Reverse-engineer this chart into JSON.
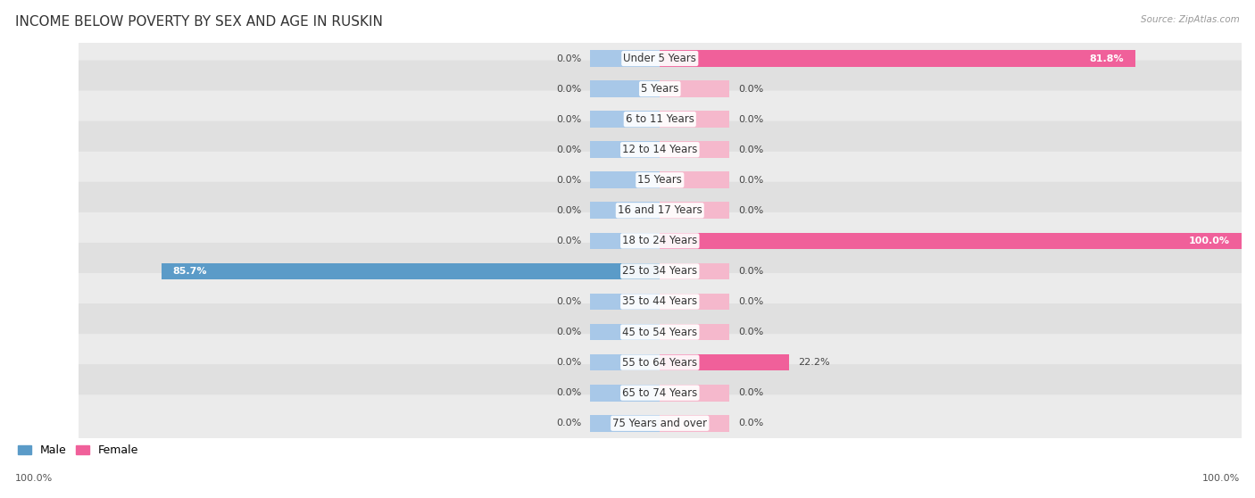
{
  "title": "INCOME BELOW POVERTY BY SEX AND AGE IN RUSKIN",
  "source": "Source: ZipAtlas.com",
  "categories": [
    "Under 5 Years",
    "5 Years",
    "6 to 11 Years",
    "12 to 14 Years",
    "15 Years",
    "16 and 17 Years",
    "18 to 24 Years",
    "25 to 34 Years",
    "35 to 44 Years",
    "45 to 54 Years",
    "55 to 64 Years",
    "65 to 74 Years",
    "75 Years and over"
  ],
  "male": [
    0.0,
    0.0,
    0.0,
    0.0,
    0.0,
    0.0,
    0.0,
    85.7,
    0.0,
    0.0,
    0.0,
    0.0,
    0.0
  ],
  "female": [
    81.8,
    0.0,
    0.0,
    0.0,
    0.0,
    0.0,
    100.0,
    0.0,
    0.0,
    0.0,
    22.2,
    0.0,
    0.0
  ],
  "male_color_light": "#a8c8e8",
  "female_color_light": "#f5b8cc",
  "male_color_dark": "#5b9bc8",
  "female_color_dark": "#f0609a",
  "row_colors": [
    "#ebebeb",
    "#e0e0e0"
  ],
  "title_fontsize": 11,
  "label_fontsize": 8.5,
  "value_fontsize": 8,
  "max_val": 100
}
